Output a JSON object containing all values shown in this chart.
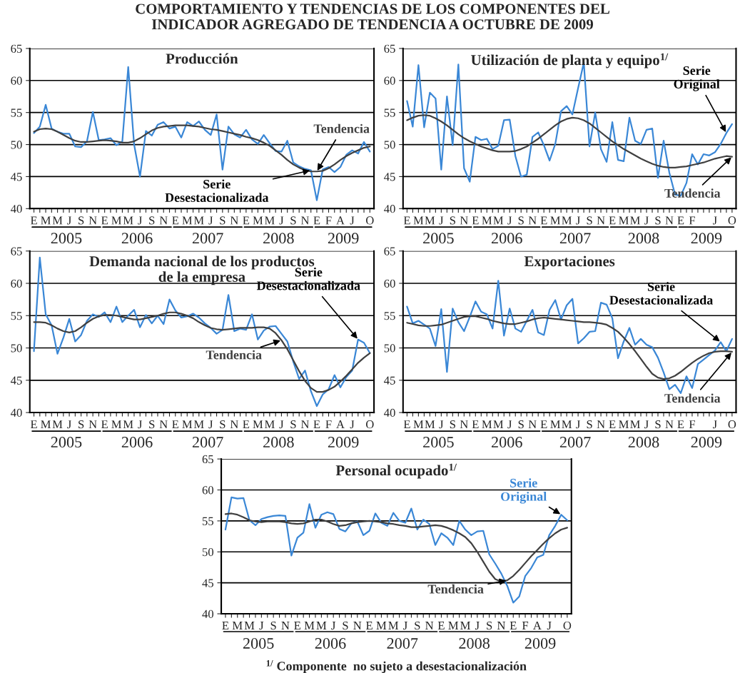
{
  "chart_data": [
    {
      "type": "line",
      "title": "Producción",
      "annotations": [
        "2005",
        "2006",
        "2007",
        "2008",
        "2009",
        "COMPORTAMIENTO Y TENDENCIAS DE LOS COMPONENTES DEL\nINDICADOR AGREGADO DE TENDENCIA A OCTUBRE DE 2009"
      ],
      "categories": [
        "E",
        null,
        "M",
        null,
        "M",
        null,
        "J",
        null,
        "S",
        null,
        "N",
        null,
        "E",
        null,
        "M",
        null,
        "M",
        null,
        "J",
        null,
        "S",
        null,
        "N",
        null,
        "E",
        null,
        "M",
        null,
        "M",
        null,
        "J",
        null,
        "S",
        null,
        "N",
        null,
        "E",
        null,
        "M",
        null,
        "M",
        null,
        "J",
        null,
        "S",
        null,
        "N",
        null,
        "E",
        null,
        "F",
        null,
        "A",
        null,
        "J",
        null,
        null,
        "O"
      ],
      "series": [
        {
          "name": "Serie\nDesestacionalizada",
          "color": "#3a87d6",
          "values": [
            51.8,
            52.8,
            56.2,
            52.5,
            52.0,
            51.7,
            51.7,
            49.7,
            49.6,
            50.5,
            55.1,
            50.7,
            50.8,
            51.0,
            49.9,
            50.5,
            62.1,
            50.0,
            45.0,
            52.1,
            51.4,
            53.1,
            53.5,
            52.5,
            52.8,
            51.1,
            53.5,
            52.9,
            53.6,
            52.3,
            51.5,
            54.7,
            46.1,
            52.8,
            51.6,
            51.1,
            52.3,
            50.8,
            50.1,
            51.5,
            50.2,
            49.0,
            48.9,
            50.6,
            47.2,
            46.6,
            46.2,
            46.0,
            41.3,
            46.1,
            46.5,
            45.7,
            46.5,
            48.4,
            49.1,
            48.6,
            50.4,
            48.9
          ]
        },
        {
          "name": "Tendencia",
          "color": "#404040",
          "values": [
            52.0,
            52.4,
            52.5,
            52.4,
            52.0,
            51.5,
            51.0,
            50.6,
            50.4,
            50.4,
            50.5,
            50.6,
            50.7,
            50.6,
            50.5,
            50.3,
            50.3,
            50.5,
            51.0,
            51.6,
            52.2,
            52.6,
            52.8,
            52.9,
            53.0,
            53.0,
            53.0,
            52.9,
            52.8,
            52.6,
            52.4,
            52.3,
            52.1,
            51.9,
            51.7,
            51.5,
            51.2,
            51.0,
            50.7,
            50.3,
            49.8,
            49.1,
            48.4,
            47.6,
            46.9,
            46.4,
            46.0,
            45.8,
            45.8,
            45.9,
            46.3,
            46.9,
            47.6,
            48.2,
            48.7,
            49.1,
            49.5,
            49.7
          ]
        }
      ],
      "ylim": [
        40,
        65
      ],
      "yticks": [
        40,
        45,
        50,
        55,
        60,
        65
      ],
      "grid": "y"
    },
    {
      "type": "line",
      "title": "Utilización de planta y equipo$^{1/}$",
      "annotations": [
        "2005",
        "2006",
        "2007",
        "2008",
        "2009"
      ],
      "categories": [
        "E",
        null,
        "M",
        null,
        "M",
        null,
        "J",
        null,
        "S",
        null,
        "N",
        null,
        "E",
        null,
        "M",
        null,
        "M",
        null,
        "J",
        null,
        "S",
        null,
        "N",
        null,
        "E",
        null,
        "M",
        null,
        "M",
        null,
        "J",
        null,
        "S",
        null,
        "N",
        null,
        "E",
        null,
        "M",
        null,
        "M",
        null,
        "J",
        null,
        "S",
        null,
        "N",
        null,
        "E",
        null,
        "F",
        null,
        null,
        null,
        "J",
        null,
        null,
        "O"
      ],
      "series": [
        {
          "name": "Serie\nOriginal",
          "color": "#3a87d6",
          "values": [
            56.8,
            52.8,
            62.4,
            52.7,
            58.1,
            57.2,
            46.1,
            57.5,
            49.9,
            62.5,
            46.3,
            44.2,
            51.2,
            50.7,
            50.9,
            49.3,
            49.8,
            53.8,
            53.9,
            48.2,
            45.0,
            45.3,
            51.2,
            51.9,
            49.9,
            47.5,
            50.1,
            55.2,
            56.0,
            54.7,
            58.8,
            62.8,
            49.7,
            55.0,
            49.3,
            47.3,
            53.5,
            47.6,
            47.4,
            54.2,
            50.6,
            50.1,
            52.3,
            52.5,
            44.8,
            50.6,
            45.6,
            42.2,
            42.0,
            44.0,
            48.5,
            46.9,
            48.5,
            48.3,
            48.8,
            50.1,
            51.8,
            53.2
          ]
        },
        {
          "name": "Tendencia",
          "color": "#404040",
          "values": [
            53.8,
            54.2,
            54.5,
            54.6,
            54.5,
            54.1,
            53.6,
            53.0,
            52.3,
            51.6,
            51.0,
            50.5,
            50.1,
            49.7,
            49.4,
            49.1,
            48.9,
            48.9,
            48.9,
            49.0,
            49.3,
            49.7,
            50.3,
            50.9,
            51.6,
            52.3,
            53.0,
            53.6,
            54.0,
            54.2,
            54.1,
            53.8,
            53.3,
            52.6,
            51.9,
            51.2,
            50.5,
            49.9,
            49.3,
            48.8,
            48.3,
            47.8,
            47.4,
            47.0,
            46.7,
            46.5,
            46.4,
            46.4,
            46.5,
            46.6,
            46.8,
            47.0,
            47.2,
            47.5,
            47.8,
            48.0,
            48.2,
            48.1
          ]
        }
      ],
      "ylim": [
        40,
        65
      ],
      "yticks": [
        40,
        45,
        50,
        55,
        60,
        65
      ],
      "grid": "y"
    },
    {
      "type": "line",
      "title": "Demanda nacional de los productos\nde la empresa",
      "annotations": [
        "2005",
        "2006",
        "2007",
        "2008",
        "2009"
      ],
      "categories": [
        "E",
        null,
        "M",
        null,
        "M",
        null,
        "J",
        null,
        "S",
        null,
        "N",
        null,
        "E",
        null,
        "M",
        null,
        "M",
        null,
        "J",
        null,
        "S",
        null,
        "N",
        null,
        "E",
        null,
        "M",
        null,
        "M",
        null,
        "J",
        null,
        "S",
        null,
        "N",
        null,
        "E",
        null,
        "M",
        null,
        "M",
        null,
        "J",
        null,
        "S",
        null,
        "N",
        null,
        "E",
        null,
        "F",
        null,
        "A",
        null,
        "J",
        null,
        null,
        "O"
      ],
      "series": [
        {
          "name": "Serie\nDesestacionalizada",
          "color": "#3a87d6",
          "values": [
            49.5,
            64.0,
            55.2,
            53.5,
            49.1,
            51.6,
            54.5,
            51.0,
            52.0,
            54.2,
            55.2,
            54.8,
            55.5,
            54.0,
            56.4,
            54.0,
            55.0,
            55.9,
            53.2,
            55.1,
            53.8,
            55.0,
            53.7,
            57.5,
            55.8,
            54.7,
            54.9,
            55.3,
            54.7,
            53.8,
            53.1,
            52.2,
            52.8,
            58.2,
            52.6,
            53.0,
            52.8,
            55.2,
            51.3,
            52.7,
            53.3,
            53.4,
            52.2,
            51.0,
            47.9,
            45.2,
            46.5,
            43.3,
            41.0,
            42.8,
            43.6,
            45.8,
            43.9,
            45.5,
            46.5,
            51.3,
            50.8,
            49.2
          ]
        },
        {
          "name": "Tendencia",
          "color": "#404040",
          "values": [
            54.0,
            54.0,
            53.9,
            53.5,
            53.0,
            52.6,
            52.4,
            52.6,
            53.2,
            53.9,
            54.5,
            54.9,
            55.1,
            55.1,
            55.0,
            54.8,
            54.6,
            54.4,
            54.4,
            54.6,
            54.8,
            55.0,
            55.3,
            55.5,
            55.5,
            55.3,
            55.0,
            54.6,
            54.0,
            53.5,
            53.1,
            52.9,
            52.8,
            52.9,
            53.0,
            53.1,
            53.1,
            53.1,
            53.2,
            53.2,
            53.0,
            52.3,
            51.2,
            49.8,
            48.1,
            46.4,
            44.9,
            43.8,
            43.2,
            43.2,
            43.5,
            44.0,
            44.8,
            45.7,
            46.7,
            47.7,
            48.5,
            49.2
          ]
        }
      ],
      "ylim": [
        40,
        65
      ],
      "yticks": [
        40,
        45,
        50,
        55,
        60,
        65
      ],
      "grid": "y"
    },
    {
      "type": "line",
      "title": "Exportaciones",
      "annotations": [
        "2005",
        "2006",
        "2007",
        "2008",
        "2009"
      ],
      "categories": [
        "E",
        null,
        "M",
        null,
        "M",
        null,
        "J",
        null,
        "S",
        null,
        "N",
        null,
        "E",
        null,
        "M",
        null,
        "M",
        null,
        "J",
        null,
        "S",
        null,
        "N",
        null,
        "E",
        null,
        "M",
        null,
        "M",
        null,
        "J",
        null,
        "S",
        null,
        "N",
        null,
        "E",
        null,
        "M",
        null,
        "M",
        null,
        "J",
        null,
        "S",
        null,
        "N",
        null,
        "E",
        null,
        "F",
        null,
        null,
        null,
        "J",
        null,
        null,
        "O"
      ],
      "series": [
        {
          "name": "Serie\nDesestacionalizada",
          "color": "#3a87d6",
          "values": [
            56.4,
            53.8,
            54.2,
            53.6,
            53.0,
            50.3,
            56.0,
            46.3,
            56.1,
            54.0,
            52.6,
            54.8,
            57.2,
            55.6,
            55.2,
            53.0,
            60.4,
            51.9,
            56.1,
            53.0,
            52.5,
            54.2,
            55.9,
            52.4,
            52.0,
            55.9,
            57.4,
            54.4,
            56.6,
            57.6,
            50.7,
            51.5,
            52.5,
            52.6,
            57.0,
            56.7,
            54.6,
            48.4,
            51.0,
            53.1,
            50.5,
            51.4,
            50.5,
            50.1,
            48.5,
            46.2,
            43.6,
            44.3,
            43.0,
            45.6,
            43.8,
            47.5,
            48.2,
            48.9,
            49.6,
            50.9,
            49.5,
            51.4
          ]
        },
        {
          "name": "Tendencia",
          "color": "#404040",
          "values": [
            53.9,
            53.7,
            53.5,
            53.4,
            53.4,
            53.5,
            53.6,
            53.9,
            54.2,
            54.5,
            54.8,
            54.9,
            54.9,
            54.7,
            54.5,
            54.2,
            54.0,
            53.8,
            53.7,
            53.7,
            53.9,
            54.1,
            54.4,
            54.6,
            54.7,
            54.6,
            54.5,
            54.4,
            54.3,
            54.2,
            54.1,
            54.0,
            54.0,
            53.9,
            53.8,
            53.6,
            53.1,
            52.5,
            51.6,
            50.6,
            49.5,
            48.3,
            47.1,
            46.0,
            45.4,
            45.2,
            45.3,
            45.7,
            46.3,
            47.0,
            47.7,
            48.3,
            48.8,
            49.2,
            49.4,
            49.5,
            49.5,
            49.4
          ]
        }
      ],
      "ylim": [
        40,
        65
      ],
      "yticks": [
        40,
        45,
        50,
        55,
        60,
        65
      ],
      "grid": "y"
    },
    {
      "type": "line",
      "title": "Personal ocupado$^{1/}$",
      "annotations": [
        "2005",
        "2006",
        "2007",
        "2008",
        "2009",
        "$^{1/}$ Componente  no sujeto a desestacionalización"
      ],
      "categories": [
        "E",
        null,
        "M",
        null,
        "M",
        null,
        "J",
        null,
        "S",
        null,
        "N",
        null,
        "E",
        null,
        "M",
        null,
        "M",
        null,
        "J",
        null,
        "S",
        null,
        "N",
        null,
        "E",
        null,
        "M",
        null,
        "M",
        null,
        "J",
        null,
        "S",
        null,
        "N",
        null,
        "E",
        null,
        "M",
        null,
        "M",
        null,
        "J",
        null,
        "S",
        null,
        "N",
        null,
        "E",
        null,
        "F",
        null,
        "A",
        null,
        "J",
        null,
        null,
        "O"
      ],
      "series": [
        {
          "name": "Serie\nOriginal",
          "color": "#3a87d6",
          "values": [
            53.6,
            58.8,
            58.6,
            58.7,
            55.1,
            54.3,
            55.3,
            55.6,
            55.8,
            55.9,
            55.8,
            49.4,
            52.3,
            53.1,
            57.7,
            53.9,
            56.0,
            56.4,
            56.1,
            53.7,
            53.3,
            54.6,
            54.9,
            52.7,
            53.4,
            56.2,
            54.7,
            54.2,
            56.3,
            55.0,
            54.7,
            57.0,
            53.6,
            55.2,
            54.5,
            51.1,
            53.0,
            52.3,
            51.1,
            55.0,
            53.6,
            52.7,
            53.3,
            53.4,
            49.6,
            48.1,
            46.5,
            44.5,
            41.8,
            42.8,
            46.1,
            47.4,
            49.1,
            49.5,
            52.7,
            54.2,
            56.0,
            55.1
          ]
        },
        {
          "name": "Tendencia",
          "color": "#404040",
          "values": [
            56.1,
            56.2,
            56.0,
            55.6,
            55.1,
            54.9,
            54.8,
            54.9,
            54.9,
            54.9,
            54.8,
            54.6,
            54.5,
            54.6,
            54.9,
            55.2,
            55.2,
            54.9,
            54.5,
            54.2,
            54.3,
            54.6,
            54.8,
            54.9,
            55.0,
            54.9,
            54.8,
            54.6,
            54.5,
            54.3,
            54.2,
            54.0,
            54.0,
            54.1,
            54.2,
            54.3,
            54.2,
            53.9,
            53.5,
            53.0,
            52.4,
            51.4,
            50.0,
            48.4,
            46.8,
            45.6,
            45.2,
            45.4,
            46.1,
            47.1,
            48.2,
            49.3,
            50.3,
            51.3,
            52.2,
            53.0,
            53.6,
            53.9
          ]
        }
      ],
      "ylim": [
        40,
        65
      ],
      "yticks": [
        40,
        45,
        50,
        55,
        60,
        65
      ],
      "grid": "y"
    }
  ]
}
